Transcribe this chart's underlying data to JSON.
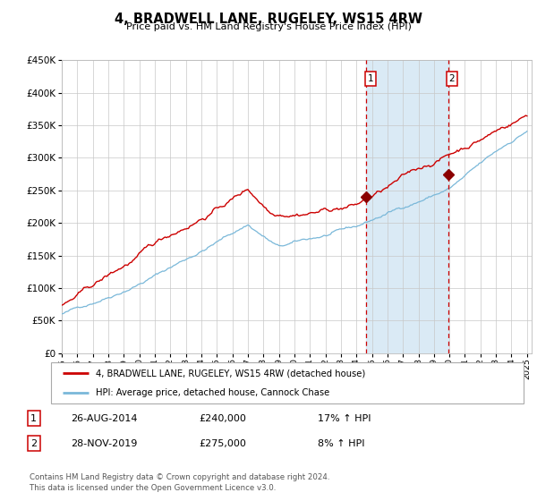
{
  "title": "4, BRADWELL LANE, RUGELEY, WS15 4RW",
  "subtitle": "Price paid vs. HM Land Registry's House Price Index (HPI)",
  "legend_line1": "4, BRADWELL LANE, RUGELEY, WS15 4RW (detached house)",
  "legend_line2": "HPI: Average price, detached house, Cannock Chase",
  "annotation1_date": "26-AUG-2014",
  "annotation1_price": "£240,000",
  "annotation1_hpi": "17% ↑ HPI",
  "annotation2_date": "28-NOV-2019",
  "annotation2_price": "£275,000",
  "annotation2_hpi": "8% ↑ HPI",
  "footer": "Contains HM Land Registry data © Crown copyright and database right 2024.\nThis data is licensed under the Open Government Licence v3.0.",
  "hpi_line_color": "#7ab8d9",
  "price_line_color": "#cc0000",
  "marker_color": "#8b0000",
  "vline_color": "#cc0000",
  "shade_color": "#daeaf5",
  "ylim": [
    0,
    450000
  ],
  "yticks": [
    0,
    50000,
    100000,
    150000,
    200000,
    250000,
    300000,
    350000,
    400000,
    450000
  ],
  "sale1_year": 2014.65,
  "sale1_price": 240000,
  "sale2_year": 2019.91,
  "sale2_price": 275000,
  "background_color": "#ffffff",
  "grid_color": "#c8c8c8"
}
